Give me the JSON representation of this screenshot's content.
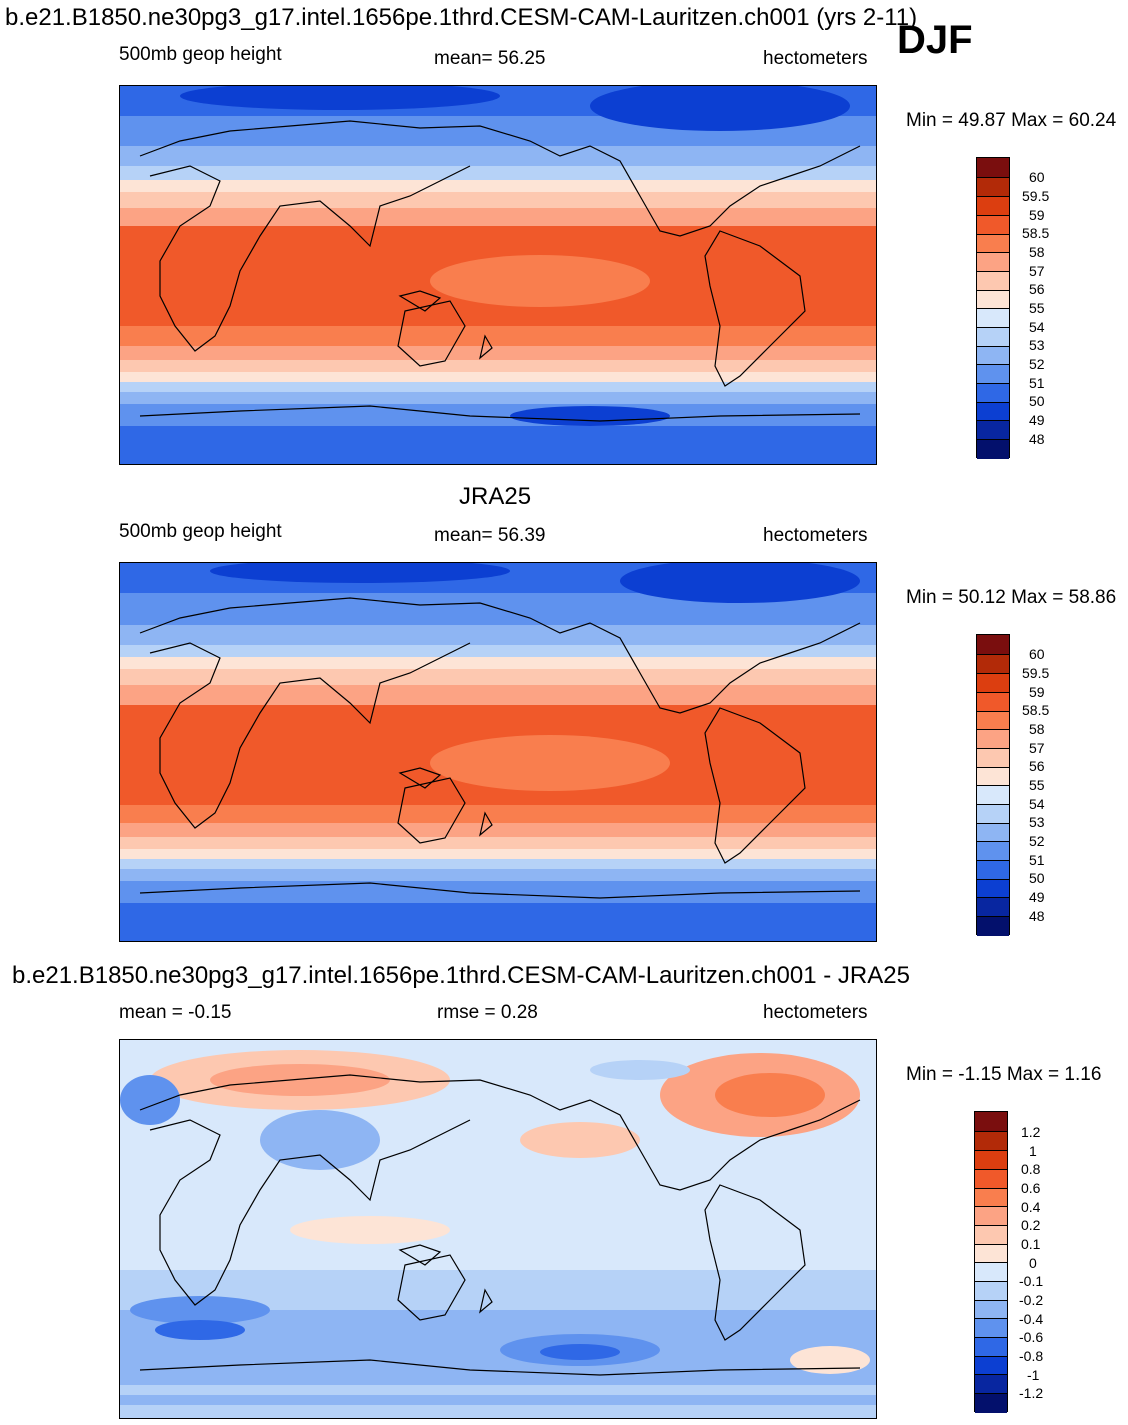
{
  "season": "DJF",
  "colors": {
    "warm": [
      "#7a0e0e",
      "#b22a08",
      "#dc3e10",
      "#f0592a",
      "#f97e4e",
      "#fca384",
      "#fdc8b0",
      "#fde4d6"
    ],
    "cool": [
      "#d8e8fb",
      "#b6d2f7",
      "#8eb5f3",
      "#5f92ee",
      "#2f68e6",
      "#0c3fd2",
      "#0826a0",
      "#03106c"
    ],
    "coast": "#000000"
  },
  "panels": [
    {
      "title": "b.e21.B1850.ne30pg3_g17.intel.1656pe.1thrd.CESM-CAM-Lauritzen.ch001 (yrs 2-11)",
      "left": "500mb geop height",
      "center": "mean=  56.25",
      "right": "hectometers",
      "minmax": "Min =  49.87 Max =  60.24",
      "levels": [
        "60",
        "59.5",
        "59",
        "58.5",
        "58",
        "57",
        "56",
        "55",
        "54",
        "53",
        "52",
        "51",
        "50",
        "49",
        "48"
      ]
    },
    {
      "title": "JRA25",
      "left": "500mb geop height",
      "center": "mean=  56.39",
      "right": "hectometers",
      "minmax": "Min =  50.12 Max =  58.86",
      "levels": [
        "60",
        "59.5",
        "59",
        "58.5",
        "58",
        "57",
        "56",
        "55",
        "54",
        "53",
        "52",
        "51",
        "50",
        "49",
        "48"
      ]
    },
    {
      "title": "b.e21.B1850.ne30pg3_g17.intel.1656pe.1thrd.CESM-CAM-Lauritzen.ch001 - JRA25",
      "left": "mean =  -0.15",
      "center": "rmse =    0.28",
      "right": "hectometers",
      "minmax": "Min =  -1.15 Max =    1.16",
      "levels": [
        "1.2",
        "1",
        "0.8",
        "0.6",
        "0.4",
        "0.2",
        "0.1",
        "0",
        "-0.1",
        "-0.2",
        "-0.4",
        "-0.6",
        "-0.8",
        "-1",
        "-1.2"
      ]
    }
  ]
}
